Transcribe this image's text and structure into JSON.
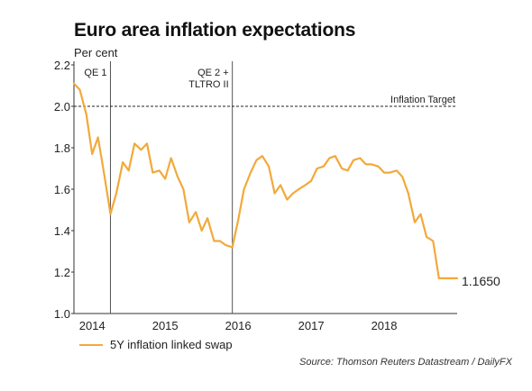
{
  "chart_data": {
    "type": "line",
    "title": "Euro area inflation expectations",
    "ylabel": "Per cent",
    "ylim": [
      1.0,
      2.2
    ],
    "yticks": [
      "1.0",
      "1.2",
      "1.4",
      "1.6",
      "1.8",
      "2.0",
      "2.2"
    ],
    "xlim": [
      2013.75,
      2019.0
    ],
    "xticks": [
      {
        "label": "2014",
        "x": 2014.0
      },
      {
        "label": "2015",
        "x": 2015.0
      },
      {
        "label": "2016",
        "x": 2016.0
      },
      {
        "label": "2017",
        "x": 2017.0
      },
      {
        "label": "2018",
        "x": 2018.0
      }
    ],
    "series": [
      {
        "name": "5Y inflation linked swap",
        "color": "#f2a93b",
        "x": [
          2013.75,
          2013.83,
          2013.92,
          2014.0,
          2014.08,
          2014.17,
          2014.25,
          2014.33,
          2014.42,
          2014.5,
          2014.58,
          2014.67,
          2014.75,
          2014.83,
          2014.92,
          2015.0,
          2015.08,
          2015.17,
          2015.25,
          2015.33,
          2015.42,
          2015.5,
          2015.58,
          2015.67,
          2015.75,
          2015.83,
          2015.92,
          2016.0,
          2016.08,
          2016.17,
          2016.25,
          2016.33,
          2016.42,
          2016.5,
          2016.58,
          2016.67,
          2016.75,
          2016.83,
          2016.92,
          2017.0,
          2017.08,
          2017.17,
          2017.25,
          2017.33,
          2017.42,
          2017.5,
          2017.58,
          2017.67,
          2017.75,
          2017.83,
          2017.92,
          2018.0,
          2018.08,
          2018.17,
          2018.25,
          2018.33,
          2018.42,
          2018.5,
          2018.58,
          2018.67,
          2018.75,
          2018.83,
          2018.92,
          2019.0
        ],
        "y": [
          2.11,
          2.08,
          1.96,
          1.77,
          1.85,
          1.66,
          1.48,
          1.58,
          1.73,
          1.69,
          1.82,
          1.79,
          1.82,
          1.68,
          1.69,
          1.65,
          1.75,
          1.66,
          1.6,
          1.44,
          1.49,
          1.4,
          1.46,
          1.35,
          1.35,
          1.33,
          1.32,
          1.45,
          1.6,
          1.68,
          1.74,
          1.76,
          1.71,
          1.58,
          1.62,
          1.55,
          1.58,
          1.6,
          1.62,
          1.64,
          1.7,
          1.71,
          1.75,
          1.76,
          1.7,
          1.69,
          1.74,
          1.75,
          1.72,
          1.72,
          1.71,
          1.68,
          1.68,
          1.69,
          1.66,
          1.58,
          1.44,
          1.48,
          1.37,
          1.35,
          1.17,
          1.17,
          1.17,
          1.17
        ]
      }
    ],
    "reference_line": {
      "label": "Inflation Target",
      "y": 2.0
    },
    "event_lines": [
      {
        "label_lines": [
          "QE 1"
        ],
        "x": 2014.25
      },
      {
        "label_lines": [
          "QE 2 +",
          "TLTRO II"
        ],
        "x": 2015.92
      }
    ],
    "last_value_label": "1.1650",
    "legend": "bottom-left",
    "source": "Source: Thomson Reuters Datastream / DailyFX"
  }
}
